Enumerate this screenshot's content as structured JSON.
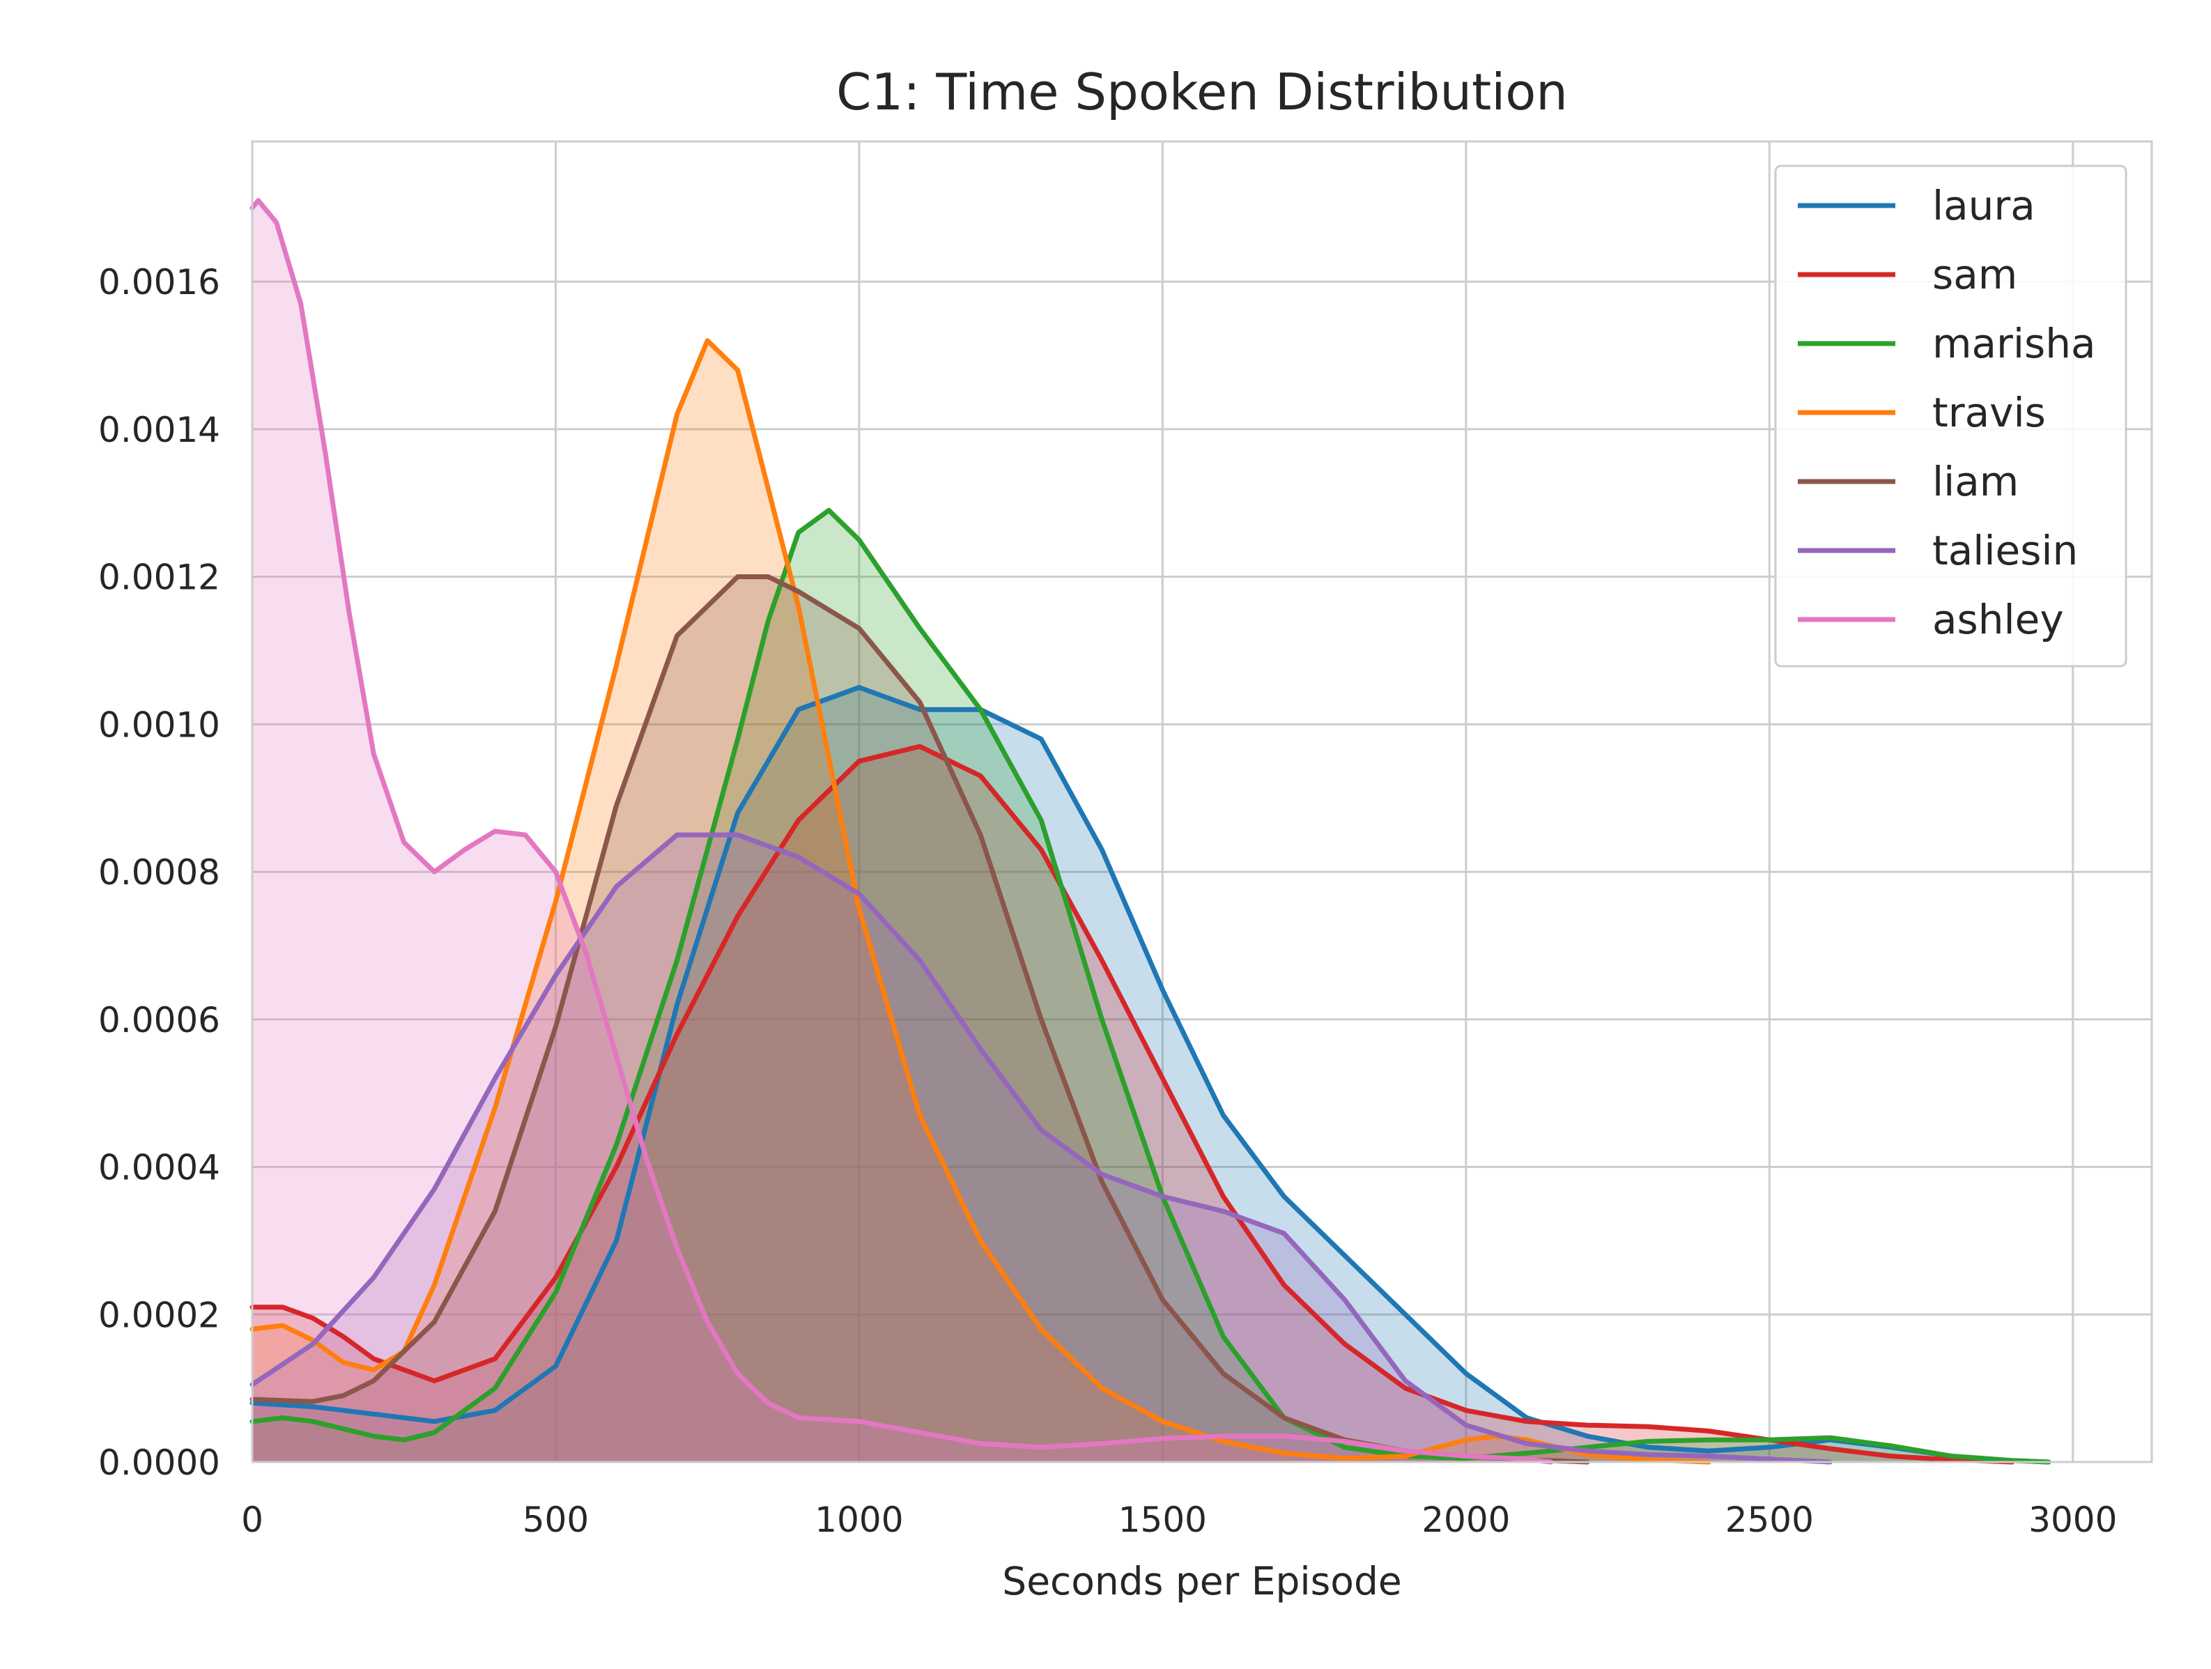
{
  "chart_data": {
    "type": "area",
    "title": "C1: Time Spoken Distribution",
    "xlabel": "Seconds per Episode",
    "ylabel": "",
    "xlim": [
      0,
      3130
    ],
    "ylim": [
      0,
      0.00179
    ],
    "xticks": [
      0,
      500,
      1000,
      1500,
      2000,
      2500,
      3000
    ],
    "yticks": [
      0.0,
      0.0002,
      0.0004,
      0.0006,
      0.0008,
      0.001,
      0.0012,
      0.0014,
      0.0016
    ],
    "xtick_labels": [
      "0",
      "500",
      "1000",
      "1500",
      "2000",
      "2500",
      "3000"
    ],
    "ytick_labels": [
      "0.0000",
      "0.0002",
      "0.0004",
      "0.0006",
      "0.0008",
      "0.0010",
      "0.0012",
      "0.0014",
      "0.0016"
    ],
    "grid": true,
    "legend_position": "top-right",
    "series": [
      {
        "name": "laura",
        "color": "#1f77b4",
        "points": [
          [
            0,
            8e-05
          ],
          [
            100,
            7.5e-05
          ],
          [
            200,
            6.5e-05
          ],
          [
            300,
            5.5e-05
          ],
          [
            400,
            7e-05
          ],
          [
            500,
            0.00013
          ],
          [
            600,
            0.0003
          ],
          [
            700,
            0.00062
          ],
          [
            800,
            0.00088
          ],
          [
            900,
            0.00102
          ],
          [
            1000,
            0.00105
          ],
          [
            1100,
            0.00102
          ],
          [
            1200,
            0.00102
          ],
          [
            1300,
            0.00098
          ],
          [
            1400,
            0.00083
          ],
          [
            1500,
            0.00064
          ],
          [
            1600,
            0.00047
          ],
          [
            1700,
            0.00036
          ],
          [
            1800,
            0.00028
          ],
          [
            1900,
            0.0002
          ],
          [
            2000,
            0.00012
          ],
          [
            2100,
            6e-05
          ],
          [
            2200,
            3.5e-05
          ],
          [
            2300,
            2e-05
          ],
          [
            2400,
            1.5e-05
          ],
          [
            2500,
            2e-05
          ],
          [
            2600,
            3e-05
          ],
          [
            2700,
            2e-05
          ],
          [
            2800,
            8e-06
          ],
          [
            2900,
            2e-06
          ],
          [
            2960,
            0.0
          ]
        ]
      },
      {
        "name": "sam",
        "color": "#d62728",
        "points": [
          [
            0,
            0.00021
          ],
          [
            50,
            0.00021
          ],
          [
            100,
            0.000195
          ],
          [
            150,
            0.00017
          ],
          [
            200,
            0.00014
          ],
          [
            300,
            0.00011
          ],
          [
            400,
            0.00014
          ],
          [
            500,
            0.00025
          ],
          [
            600,
            0.0004
          ],
          [
            700,
            0.00058
          ],
          [
            800,
            0.00074
          ],
          [
            900,
            0.00087
          ],
          [
            1000,
            0.00095
          ],
          [
            1100,
            0.00097
          ],
          [
            1200,
            0.00093
          ],
          [
            1300,
            0.00083
          ],
          [
            1400,
            0.00068
          ],
          [
            1500,
            0.00052
          ],
          [
            1600,
            0.00036
          ],
          [
            1700,
            0.00024
          ],
          [
            1800,
            0.00016
          ],
          [
            1900,
            0.0001
          ],
          [
            2000,
            7e-05
          ],
          [
            2100,
            5.5e-05
          ],
          [
            2200,
            5e-05
          ],
          [
            2300,
            4.8e-05
          ],
          [
            2400,
            4.2e-05
          ],
          [
            2500,
            3e-05
          ],
          [
            2600,
            1.8e-05
          ],
          [
            2700,
            8e-06
          ],
          [
            2800,
            3e-06
          ],
          [
            2900,
            0.0
          ]
        ]
      },
      {
        "name": "marisha",
        "color": "#2ca02c",
        "points": [
          [
            0,
            5.5e-05
          ],
          [
            50,
            6e-05
          ],
          [
            100,
            5.5e-05
          ],
          [
            200,
            3.5e-05
          ],
          [
            250,
            3e-05
          ],
          [
            300,
            4e-05
          ],
          [
            400,
            0.0001
          ],
          [
            500,
            0.00023
          ],
          [
            600,
            0.00043
          ],
          [
            700,
            0.00068
          ],
          [
            800,
            0.00098
          ],
          [
            850,
            0.00114
          ],
          [
            900,
            0.00126
          ],
          [
            950,
            0.00129
          ],
          [
            1000,
            0.00125
          ],
          [
            1100,
            0.00113
          ],
          [
            1200,
            0.00102
          ],
          [
            1300,
            0.00087
          ],
          [
            1400,
            0.0006
          ],
          [
            1500,
            0.00036
          ],
          [
            1600,
            0.00017
          ],
          [
            1700,
            6e-05
          ],
          [
            1800,
            2e-05
          ],
          [
            1900,
            8e-06
          ],
          [
            2000,
            5e-06
          ],
          [
            2100,
            1.2e-05
          ],
          [
            2200,
            2e-05
          ],
          [
            2300,
            2.8e-05
          ],
          [
            2400,
            3e-05
          ],
          [
            2500,
            3e-05
          ],
          [
            2600,
            3.3e-05
          ],
          [
            2700,
            2.2e-05
          ],
          [
            2800,
            8e-06
          ],
          [
            2900,
            2e-06
          ],
          [
            2960,
            0.0
          ]
        ]
      },
      {
        "name": "travis",
        "color": "#ff7f0e",
        "points": [
          [
            0,
            0.00018
          ],
          [
            50,
            0.000185
          ],
          [
            100,
            0.000165
          ],
          [
            150,
            0.000135
          ],
          [
            200,
            0.000125
          ],
          [
            250,
            0.00015
          ],
          [
            300,
            0.00024
          ],
          [
            400,
            0.00048
          ],
          [
            500,
            0.00076
          ],
          [
            600,
            0.00108
          ],
          [
            700,
            0.00142
          ],
          [
            750,
            0.00152
          ],
          [
            800,
            0.00148
          ],
          [
            900,
            0.00116
          ],
          [
            1000,
            0.00075
          ],
          [
            1100,
            0.00047
          ],
          [
            1200,
            0.0003
          ],
          [
            1300,
            0.00018
          ],
          [
            1400,
            0.0001
          ],
          [
            1500,
            5.5e-05
          ],
          [
            1600,
            2.8e-05
          ],
          [
            1700,
            1.2e-05
          ],
          [
            1800,
            5e-06
          ],
          [
            1900,
            8e-06
          ],
          [
            2000,
            3e-05
          ],
          [
            2050,
            3.5e-05
          ],
          [
            2100,
            3e-05
          ],
          [
            2200,
            1e-05
          ],
          [
            2300,
            3e-06
          ],
          [
            2400,
            0.0
          ]
        ]
      },
      {
        "name": "liam",
        "color": "#8c564b",
        "points": [
          [
            0,
            8.5e-05
          ],
          [
            100,
            8.2e-05
          ],
          [
            150,
            9e-05
          ],
          [
            200,
            0.00011
          ],
          [
            300,
            0.00019
          ],
          [
            400,
            0.00034
          ],
          [
            500,
            0.00059
          ],
          [
            600,
            0.00089
          ],
          [
            700,
            0.00112
          ],
          [
            800,
            0.0012
          ],
          [
            850,
            0.0012
          ],
          [
            900,
            0.00118
          ],
          [
            1000,
            0.00113
          ],
          [
            1100,
            0.00103
          ],
          [
            1200,
            0.00085
          ],
          [
            1300,
            0.0006
          ],
          [
            1400,
            0.00038
          ],
          [
            1500,
            0.00022
          ],
          [
            1600,
            0.00012
          ],
          [
            1700,
            6e-05
          ],
          [
            1800,
            3e-05
          ],
          [
            1900,
            1.5e-05
          ],
          [
            2000,
            8e-06
          ],
          [
            2100,
            3e-06
          ],
          [
            2200,
            0.0
          ]
        ]
      },
      {
        "name": "taliesin",
        "color": "#9467bd",
        "points": [
          [
            0,
            0.000105
          ],
          [
            100,
            0.00016
          ],
          [
            200,
            0.00025
          ],
          [
            300,
            0.00037
          ],
          [
            400,
            0.00052
          ],
          [
            500,
            0.00066
          ],
          [
            600,
            0.00078
          ],
          [
            700,
            0.00085
          ],
          [
            800,
            0.00085
          ],
          [
            900,
            0.00082
          ],
          [
            1000,
            0.00077
          ],
          [
            1100,
            0.00068
          ],
          [
            1200,
            0.00056
          ],
          [
            1300,
            0.00045
          ],
          [
            1400,
            0.00039
          ],
          [
            1500,
            0.00036
          ],
          [
            1600,
            0.00034
          ],
          [
            1700,
            0.00031
          ],
          [
            1800,
            0.00022
          ],
          [
            1900,
            0.00011
          ],
          [
            2000,
            5e-05
          ],
          [
            2100,
            2.5e-05
          ],
          [
            2200,
            1.5e-05
          ],
          [
            2300,
            1e-05
          ],
          [
            2400,
            8e-06
          ],
          [
            2500,
            4e-06
          ],
          [
            2600,
            0.0
          ]
        ]
      },
      {
        "name": "ashley",
        "color": "#e377c2",
        "points": [
          [
            0,
            0.0017
          ],
          [
            10,
            0.00171
          ],
          [
            40,
            0.00168
          ],
          [
            80,
            0.00157
          ],
          [
            120,
            0.00137
          ],
          [
            160,
            0.00115
          ],
          [
            200,
            0.00096
          ],
          [
            250,
            0.00084
          ],
          [
            300,
            0.0008
          ],
          [
            350,
            0.00083
          ],
          [
            400,
            0.000855
          ],
          [
            450,
            0.00085
          ],
          [
            500,
            0.0008
          ],
          [
            550,
            0.00069
          ],
          [
            600,
            0.00055
          ],
          [
            650,
            0.00041
          ],
          [
            700,
            0.00029
          ],
          [
            750,
            0.00019
          ],
          [
            800,
            0.00012
          ],
          [
            850,
            8e-05
          ],
          [
            900,
            6e-05
          ],
          [
            1000,
            5.5e-05
          ],
          [
            1100,
            4e-05
          ],
          [
            1200,
            2.5e-05
          ],
          [
            1300,
            2e-05
          ],
          [
            1400,
            2.5e-05
          ],
          [
            1500,
            3.2e-05
          ],
          [
            1600,
            3.5e-05
          ],
          [
            1700,
            3.5e-05
          ],
          [
            1800,
            2.8e-05
          ],
          [
            1900,
            1.5e-05
          ],
          [
            2000,
            8e-06
          ],
          [
            2100,
            4e-06
          ],
          [
            2140,
            0.0
          ]
        ]
      }
    ]
  }
}
